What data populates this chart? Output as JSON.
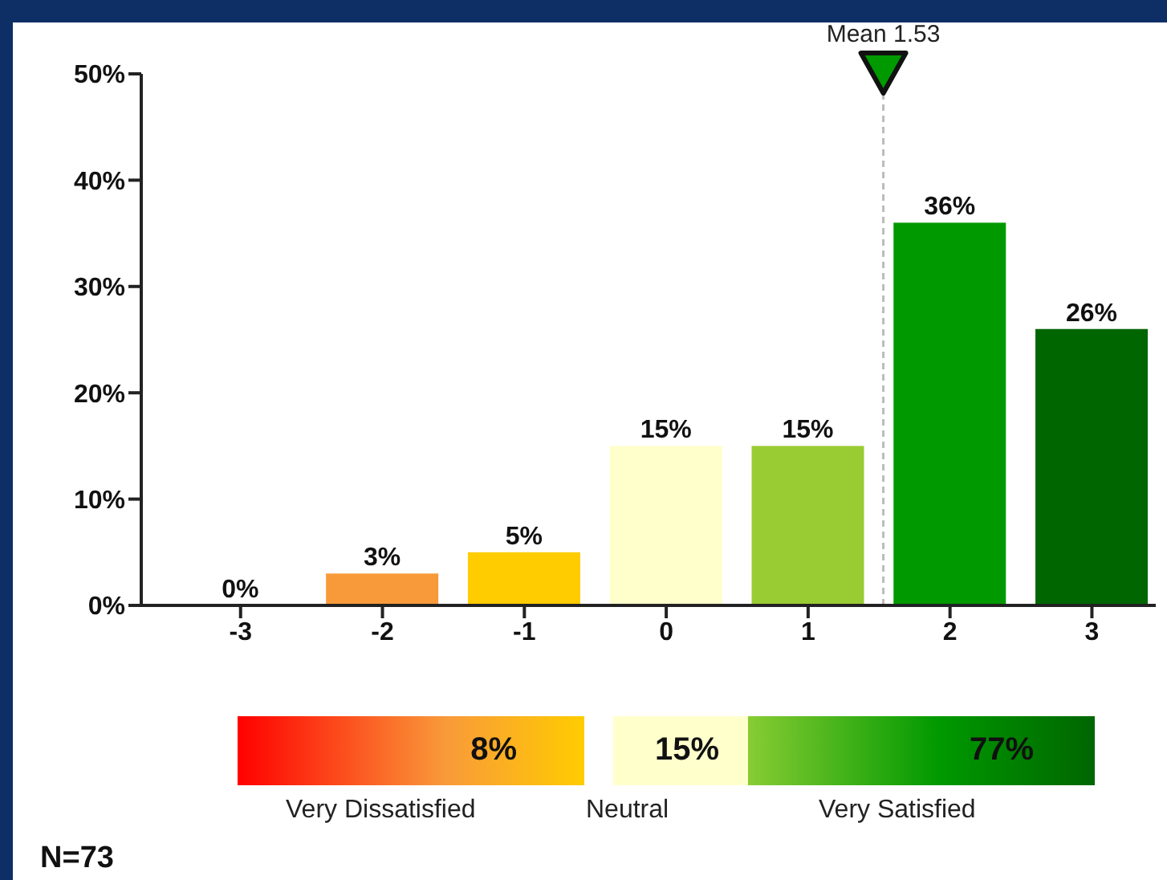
{
  "chart_data": {
    "type": "bar",
    "x": [
      -3,
      -2,
      -1,
      0,
      1,
      2,
      3
    ],
    "values": [
      0,
      3,
      5,
      15,
      15,
      36,
      26
    ],
    "value_labels": [
      "0%",
      "3%",
      "5%",
      "15%",
      "15%",
      "36%",
      "26%"
    ],
    "colors": [
      "#ff3300",
      "#f99a3a",
      "#ffcc00",
      "#ffffcc",
      "#99cc33",
      "#009900",
      "#006600"
    ],
    "xlim": [
      -3.7,
      3.45
    ],
    "xticks": [
      -3,
      -2,
      -1,
      0,
      1,
      2,
      3
    ],
    "ylim": [
      0,
      50
    ],
    "yticks": [
      {
        "value": 0,
        "label": "0%"
      },
      {
        "value": 10,
        "label": "10%"
      },
      {
        "value": 20,
        "label": "20%"
      },
      {
        "value": 30,
        "label": "30%"
      },
      {
        "value": 40,
        "label": "40%"
      },
      {
        "value": 50,
        "label": "50%"
      }
    ],
    "ref_lines": [
      {
        "axis": "x",
        "value": 1.53,
        "label": "Mean 1.53",
        "color": "#bbbbbb",
        "line_style": "dashed"
      }
    ],
    "annotations": [
      "8%",
      "15%",
      "77%",
      "Very Dissatisfied",
      "Neutral",
      "Very Satisfied",
      "N=73"
    ],
    "grid": false,
    "legend": false
  }
}
